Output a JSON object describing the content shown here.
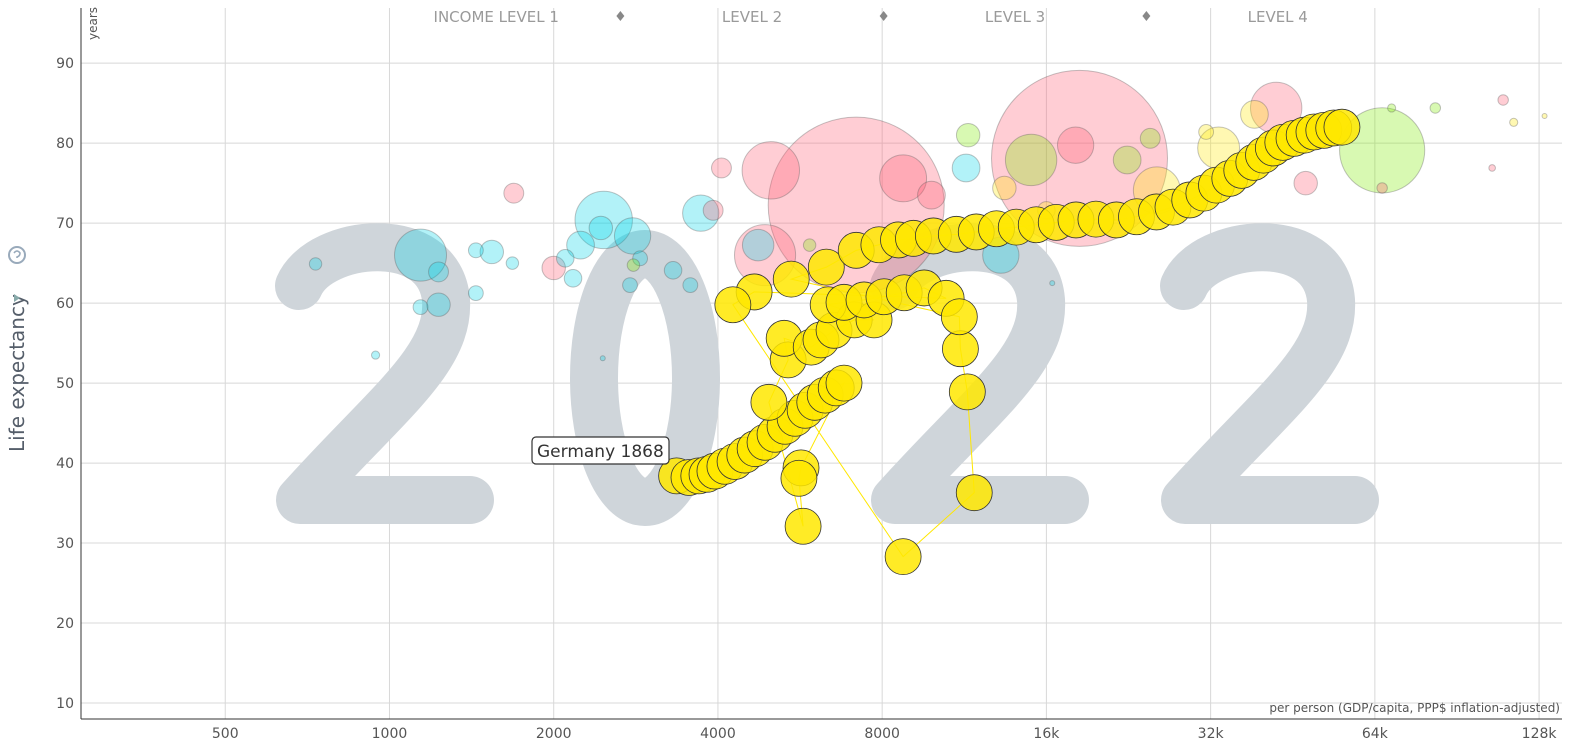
{
  "chart_data": {
    "type": "scatter",
    "year": "2022",
    "xlabel": "per person (GDP/capita, PPP$ inflation-adjusted)",
    "ylabel": "Life expectancy",
    "yunit": "years",
    "xscale": "log2",
    "xlim": [
      272,
      141000
    ],
    "ylim": [
      8,
      96.9
    ],
    "grid": true,
    "xticks": [
      500,
      1000,
      2000,
      4000,
      8000,
      16000,
      32000,
      64000,
      128000
    ],
    "xtick_labels": [
      "500",
      "1000",
      "2000",
      "4000",
      "8000",
      "16k",
      "32k",
      "64k",
      "128k"
    ],
    "yticks": [
      10,
      20,
      30,
      40,
      50,
      60,
      70,
      80,
      90
    ],
    "income_levels": {
      "labels": [
        "INCOME LEVEL 1",
        "LEVEL 2",
        "LEVEL 3",
        "LEVEL 4"
      ],
      "thresholds": [
        2650,
        8050,
        24400
      ]
    },
    "region_colors": {
      "africa": "#00d5e9",
      "asia": "#ff5872",
      "americas": "#7feb00",
      "europe": "#ffe700"
    },
    "trail": {
      "name": "Germany",
      "label": "Germany 1868",
      "color": "#ffe700",
      "points": [
        [
          3360,
          38.4
        ],
        [
          3540,
          38.2
        ],
        [
          3690,
          38.4
        ],
        [
          3820,
          38.6
        ],
        [
          3950,
          39.0
        ],
        [
          4120,
          39.6
        ],
        [
          4300,
          40.2
        ],
        [
          4480,
          41.0
        ],
        [
          4680,
          41.8
        ],
        [
          4880,
          42.6
        ],
        [
          5090,
          43.6
        ],
        [
          5310,
          44.6
        ],
        [
          5540,
          45.6
        ],
        [
          5780,
          46.6
        ],
        [
          6020,
          47.6
        ],
        [
          6290,
          48.5
        ],
        [
          6590,
          49.4
        ],
        [
          6810,
          50.0
        ],
        [
          5680,
          39.4
        ],
        [
          5630,
          38.1
        ],
        [
          5730,
          32.1
        ],
        [
          4960,
          47.6
        ],
        [
          5380,
          52.9
        ],
        [
          5290,
          55.6
        ],
        [
          5930,
          54.5
        ],
        [
          6180,
          55.4
        ],
        [
          6530,
          56.6
        ],
        [
          7110,
          57.9
        ],
        [
          7730,
          57.9
        ],
        [
          6370,
          59.8
        ],
        [
          6810,
          60.1
        ],
        [
          7410,
          60.4
        ],
        [
          8060,
          60.8
        ],
        [
          8780,
          61.3
        ],
        [
          9550,
          61.9
        ],
        [
          10480,
          60.6
        ],
        [
          4660,
          61.4
        ],
        [
          4260,
          59.8
        ],
        [
          8740,
          28.3
        ],
        [
          11800,
          36.3
        ],
        [
          11460,
          48.9
        ],
        [
          11130,
          54.3
        ],
        [
          11080,
          58.3
        ],
        [
          5450,
          63.0
        ],
        [
          6320,
          64.5
        ],
        [
          7170,
          66.6
        ],
        [
          7890,
          67.3
        ],
        [
          8570,
          67.9
        ],
        [
          9130,
          68.1
        ],
        [
          9930,
          68.4
        ],
        [
          10940,
          68.6
        ],
        [
          11900,
          68.9
        ],
        [
          12960,
          69.3
        ],
        [
          14090,
          69.5
        ],
        [
          15330,
          69.8
        ],
        [
          16680,
          70.1
        ],
        [
          18130,
          70.4
        ],
        [
          19720,
          70.5
        ],
        [
          21500,
          70.4
        ],
        [
          23400,
          70.8
        ],
        [
          25460,
          71.4
        ],
        [
          27300,
          72.0
        ],
        [
          29300,
          72.9
        ],
        [
          31100,
          73.75
        ],
        [
          32800,
          74.75
        ],
        [
          34700,
          75.6
        ],
        [
          36500,
          76.6
        ],
        [
          38400,
          77.6
        ],
        [
          40000,
          78.5
        ],
        [
          41700,
          79.4
        ],
        [
          43400,
          80.1
        ],
        [
          45500,
          80.6
        ],
        [
          47500,
          81.0
        ],
        [
          49500,
          81.4
        ],
        [
          51600,
          81.6
        ],
        [
          53800,
          81.9
        ],
        [
          55700,
          82.0
        ]
      ]
    },
    "bubbles": [
      {
        "region": "asia",
        "gdp": 18400,
        "life": 78.1,
        "pop": 1410
      },
      {
        "region": "asia",
        "gdp": 7170,
        "life": 72.25,
        "pop": 1410
      },
      {
        "region": "americas",
        "gdp": 66000,
        "life": 79.1,
        "pop": 330
      },
      {
        "region": "asia",
        "gdp": 4880,
        "life": 66,
        "pop": 170
      },
      {
        "region": "asia",
        "gdp": 5000,
        "life": 76.6,
        "pop": 150
      },
      {
        "region": "africa",
        "gdp": 2470,
        "life": 70.4,
        "pop": 150
      },
      {
        "region": "africa",
        "gdp": 1140,
        "life": 66,
        "pop": 123
      },
      {
        "region": "americas",
        "gdp": 15000,
        "life": 77.9,
        "pop": 120
      },
      {
        "region": "asia",
        "gdp": 42200,
        "life": 84.4,
        "pop": 120
      },
      {
        "region": "asia",
        "gdp": 8740,
        "life": 75.6,
        "pop": 100
      },
      {
        "region": "europe",
        "gdp": 25500,
        "life": 74.1,
        "pop": 100
      },
      {
        "region": "europe",
        "gdp": 33100,
        "life": 79.4,
        "pop": 80
      },
      {
        "region": "africa",
        "gdp": 2790,
        "life": 68.4,
        "pop": 60
      },
      {
        "region": "africa",
        "gdp": 3720,
        "life": 71.25,
        "pop": 60
      },
      {
        "region": "africa",
        "gdp": 13200,
        "life": 66,
        "pop": 60
      },
      {
        "region": "asia",
        "gdp": 18100,
        "life": 79.75,
        "pop": 60
      },
      {
        "region": "africa",
        "gdp": 4740,
        "life": 67.25,
        "pop": 45
      },
      {
        "region": "africa",
        "gdp": 2240,
        "life": 67.25,
        "pop": 35
      },
      {
        "region": "africa",
        "gdp": 11400,
        "life": 76.9,
        "pop": 35
      },
      {
        "region": "asia",
        "gdp": 9850,
        "life": 73.5,
        "pop": 35
      },
      {
        "region": "americas",
        "gdp": 22500,
        "life": 77.9,
        "pop": 35
      },
      {
        "region": "europe",
        "gdp": 38500,
        "life": 83.6,
        "pop": 35
      },
      {
        "region": "africa",
        "gdp": 1230,
        "life": 59.8,
        "pop": 25
      },
      {
        "region": "africa",
        "gdp": 1540,
        "life": 66.4,
        "pop": 25
      },
      {
        "region": "africa",
        "gdp": 2440,
        "life": 69.4,
        "pop": 25
      },
      {
        "region": "asia",
        "gdp": 2000,
        "life": 64.4,
        "pop": 25
      },
      {
        "region": "asia",
        "gdp": 47800,
        "life": 75,
        "pop": 25
      },
      {
        "region": "americas",
        "gdp": 11500,
        "life": 81,
        "pop": 25
      },
      {
        "region": "europe",
        "gdp": 13400,
        "life": 74.4,
        "pop": 25
      },
      {
        "region": "africa",
        "gdp": 1230,
        "life": 63.9,
        "pop": 18
      },
      {
        "region": "asia",
        "gdp": 1690,
        "life": 73.75,
        "pop": 18
      },
      {
        "region": "asia",
        "gdp": 4060,
        "life": 76.9,
        "pop": 18
      },
      {
        "region": "asia",
        "gdp": 3920,
        "life": 71.6,
        "pop": 18
      },
      {
        "region": "americas",
        "gdp": 24800,
        "life": 80.6,
        "pop": 18
      },
      {
        "region": "africa",
        "gdp": 3310,
        "life": 64.1,
        "pop": 14
      },
      {
        "region": "africa",
        "gdp": 2100,
        "life": 65.6,
        "pop": 14
      },
      {
        "region": "africa",
        "gdp": 2170,
        "life": 63.1,
        "pop": 14
      },
      {
        "region": "europe",
        "gdp": 16000,
        "life": 71.6,
        "pop": 14
      },
      {
        "region": "africa",
        "gdp": 1440,
        "life": 66.6,
        "pop": 10
      },
      {
        "region": "africa",
        "gdp": 1440,
        "life": 61.25,
        "pop": 10
      },
      {
        "region": "africa",
        "gdp": 1140,
        "life": 59.5,
        "pop": 10
      },
      {
        "region": "africa",
        "gdp": 3560,
        "life": 62.25,
        "pop": 10
      },
      {
        "region": "africa",
        "gdp": 2880,
        "life": 65.6,
        "pop": 10
      },
      {
        "region": "africa",
        "gdp": 2760,
        "life": 62.25,
        "pop": 10
      },
      {
        "region": "europe",
        "gdp": 31400,
        "life": 81.4,
        "pop": 10
      },
      {
        "region": "africa",
        "gdp": 732,
        "life": 64.9,
        "pop": 7
      },
      {
        "region": "africa",
        "gdp": 1680,
        "life": 65,
        "pop": 7
      },
      {
        "region": "americas",
        "gdp": 5890,
        "life": 67.25,
        "pop": 7
      },
      {
        "region": "americas",
        "gdp": 2800,
        "life": 64.75,
        "pop": 7
      },
      {
        "region": "asia",
        "gdp": 66000,
        "life": 74.4,
        "pop": 5
      },
      {
        "region": "asia",
        "gdp": 110000,
        "life": 85.4,
        "pop": 5
      },
      {
        "region": "americas",
        "gdp": 82600,
        "life": 84.4,
        "pop": 5
      },
      {
        "region": "africa",
        "gdp": 943,
        "life": 53.5,
        "pop": 3
      },
      {
        "region": "americas",
        "gdp": 68700,
        "life": 84.4,
        "pop": 3
      },
      {
        "region": "europe",
        "gdp": 115000,
        "life": 82.6,
        "pop": 3
      },
      {
        "region": "asia",
        "gdp": 105000,
        "life": 76.9,
        "pop": 2
      },
      {
        "region": "africa",
        "gdp": 16400,
        "life": 62.5,
        "pop": 1
      },
      {
        "region": "africa",
        "gdp": 2460,
        "life": 53.1,
        "pop": 1
      },
      {
        "region": "europe",
        "gdp": 131000,
        "life": 83.4,
        "pop": 1
      }
    ]
  }
}
